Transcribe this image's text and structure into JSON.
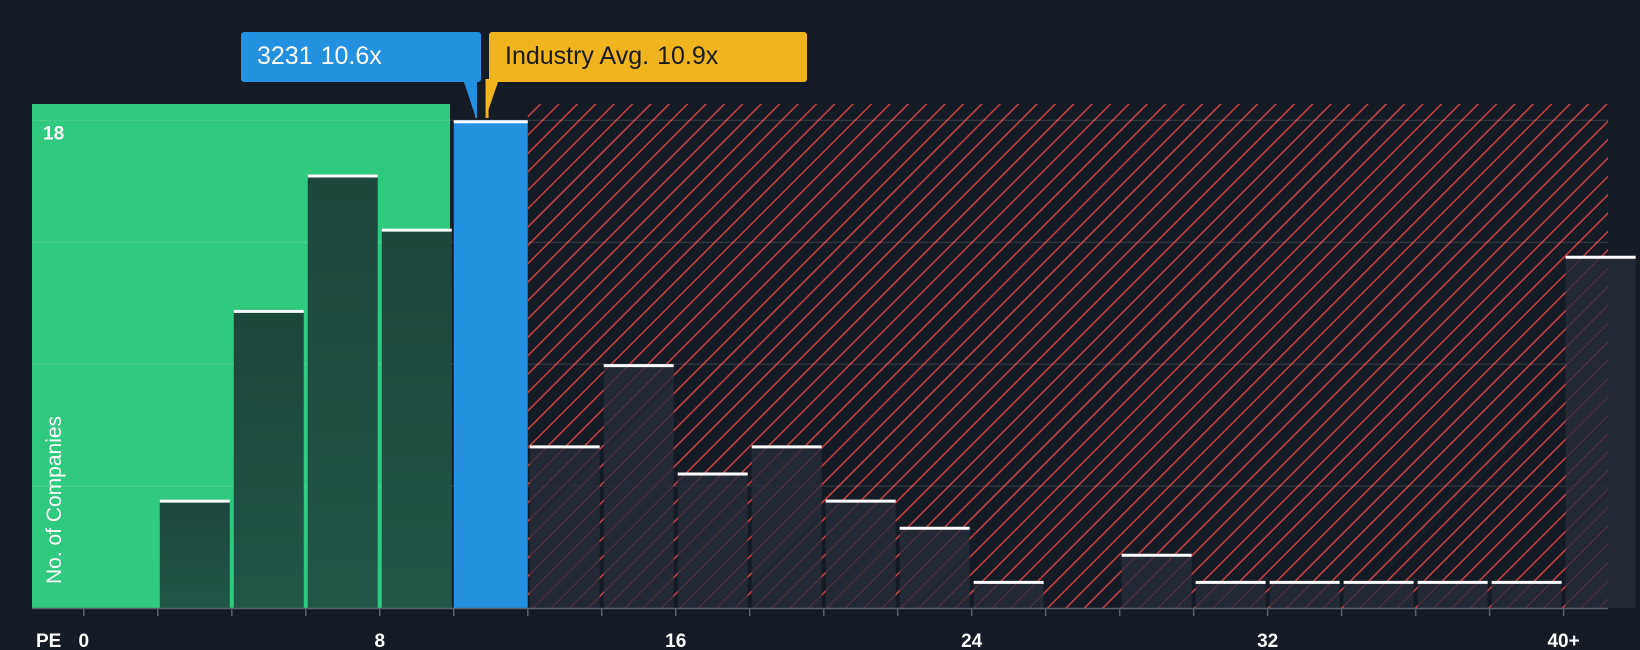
{
  "callouts": {
    "company_ticker": "3231",
    "company_value": "10.6x",
    "industry_label": "Industry Avg.",
    "industry_value": "10.9x"
  },
  "colors": {
    "background": "#151b24",
    "undervalued_zone": "#2fc980",
    "overvalued_hatch": "#c8403f",
    "company_bar": "#2390e0",
    "industry": "#f0b41e",
    "bar_dark": "#1e4a3e"
  },
  "chart_data": {
    "type": "bar",
    "xlabel": "PE",
    "ylabel": "No. of Companies",
    "x_tick_labels": [
      "0",
      "8",
      "16",
      "24",
      "32",
      "40+"
    ],
    "x_tick_values": [
      0,
      8,
      16,
      24,
      32,
      40
    ],
    "y_tick_labels": [
      "18"
    ],
    "y_tick_values": [
      18
    ],
    "gridlines_y": [
      4.5,
      9,
      13.5,
      18
    ],
    "ylim": [
      0,
      18.6
    ],
    "xlim": [
      -1.4,
      41.2
    ],
    "bin_width": 2,
    "company_pe": 10.6,
    "industry_avg_pe": 10.9,
    "bins": [
      {
        "x0": 2,
        "value": 4
      },
      {
        "x0": 4,
        "value": 11
      },
      {
        "x0": 6,
        "value": 16
      },
      {
        "x0": 8,
        "value": 14
      },
      {
        "x0": 10,
        "value": 18,
        "highlight": true
      },
      {
        "x0": 12,
        "value": 6
      },
      {
        "x0": 14,
        "value": 9
      },
      {
        "x0": 16,
        "value": 5
      },
      {
        "x0": 18,
        "value": 6
      },
      {
        "x0": 20,
        "value": 4
      },
      {
        "x0": 22,
        "value": 3
      },
      {
        "x0": 24,
        "value": 1
      },
      {
        "x0": 28,
        "value": 2
      },
      {
        "x0": 30,
        "value": 1
      },
      {
        "x0": 32,
        "value": 1
      },
      {
        "x0": 34,
        "value": 1
      },
      {
        "x0": 36,
        "value": 1
      },
      {
        "x0": 38,
        "value": 1
      },
      {
        "x0": 40,
        "value": 13
      }
    ]
  }
}
